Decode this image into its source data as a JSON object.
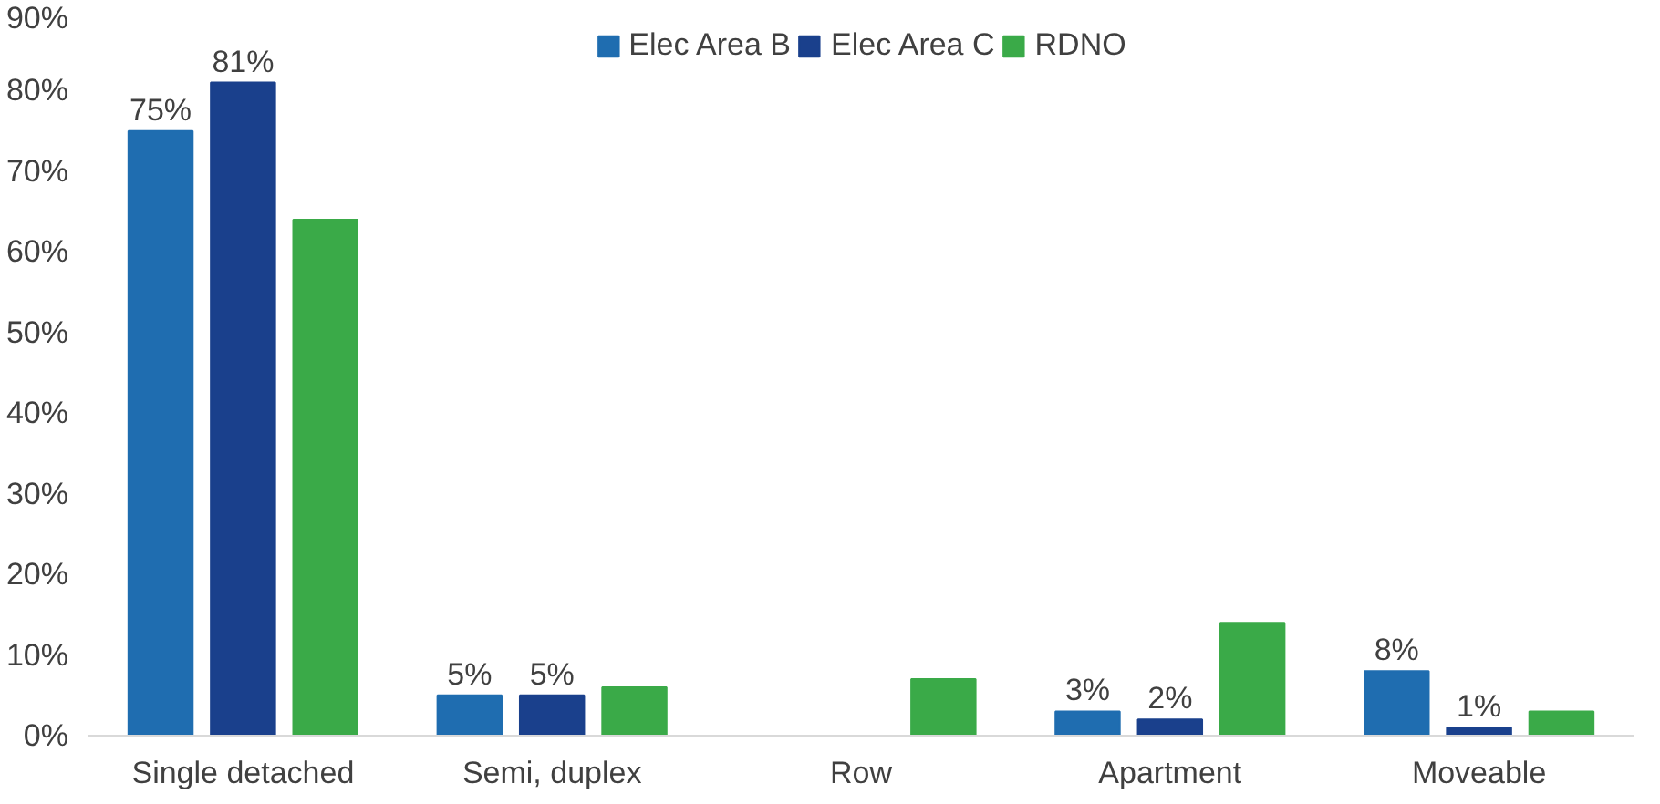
{
  "chart_data": {
    "type": "bar",
    "categories": [
      "Single detached",
      "Semi, duplex",
      "Row",
      "Apartment",
      "Moveable"
    ],
    "series": [
      {
        "name": "Elec Area B",
        "color": "#1f6db0",
        "values": [
          75,
          5,
          null,
          3,
          8
        ],
        "value_labels": [
          "75%",
          "5%",
          null,
          "3%",
          "8%"
        ]
      },
      {
        "name": "Elec Area C",
        "color": "#1a408c",
        "values": [
          81,
          5,
          null,
          2,
          1
        ],
        "value_labels": [
          "81%",
          "5%",
          null,
          "2%",
          "1%"
        ]
      },
      {
        "name": "RDNO",
        "color": "#3aaa48",
        "values": [
          64,
          6,
          7,
          14,
          3
        ]
      }
    ],
    "ylim": [
      0,
      90
    ],
    "yticks": [
      {
        "value": 0,
        "label": "0%"
      },
      {
        "value": 10,
        "label": "10%"
      },
      {
        "value": 20,
        "label": "20%"
      },
      {
        "value": 30,
        "label": "30%"
      },
      {
        "value": 40,
        "label": "40%"
      },
      {
        "value": 50,
        "label": "50%"
      },
      {
        "value": 60,
        "label": "60%"
      },
      {
        "value": 70,
        "label": "70%"
      },
      {
        "value": 80,
        "label": "80%"
      },
      {
        "value": 90,
        "label": "90%"
      }
    ],
    "grid": false,
    "legend": "top"
  }
}
